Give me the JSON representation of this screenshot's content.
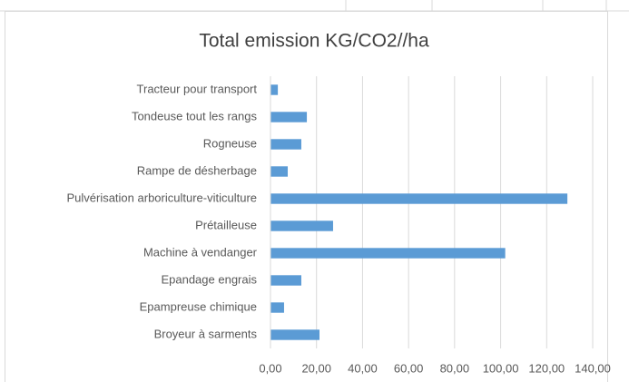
{
  "chart_data": {
    "type": "bar",
    "orientation": "horizontal",
    "title": "Total emission KG/CO2//ha",
    "categories": [
      "Tracteur pour transport",
      "Tondeuse tout les rangs",
      "Rogneuse",
      "Rampe de désherbage",
      "Pulvérisation arboriculture-viticulture",
      "Prétailleuse",
      "Machine à vendanger",
      "Epandage engrais",
      "Epampreuse chimique",
      "Broyeur à sarments"
    ],
    "values": [
      3.2,
      15.8,
      13.4,
      7.5,
      129,
      27.2,
      102,
      13.4,
      5.9,
      21.3
    ],
    "color": "#5b9bd5",
    "xlim": [
      0,
      140
    ],
    "xticks": [
      {
        "value": 0,
        "label": "0,00"
      },
      {
        "value": 20,
        "label": "20,00"
      },
      {
        "value": 40,
        "label": "40,00"
      },
      {
        "value": 60,
        "label": "60,00"
      },
      {
        "value": 80,
        "label": "80,00"
      },
      {
        "value": 100,
        "label": "100,00"
      },
      {
        "value": 120,
        "label": "120,00"
      },
      {
        "value": 140,
        "label": "140,00"
      }
    ],
    "grid": true
  }
}
